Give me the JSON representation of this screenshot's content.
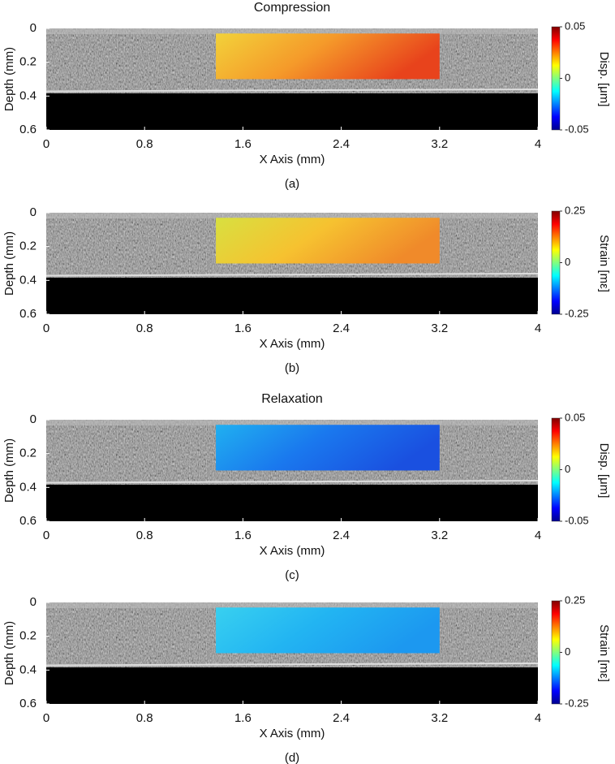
{
  "chart_data": [
    {
      "type": "image",
      "title": "Compression",
      "caption": "(a)",
      "xlabel": "X Axis (mm)",
      "ylabel": "Depth (mm)",
      "xlim": [
        0,
        4
      ],
      "xticks": [
        0,
        0.8,
        1.6,
        2.4,
        3.2,
        4
      ],
      "ylim": [
        0,
        0.6
      ],
      "yticks": [
        0,
        0.2,
        0.4,
        0.6
      ],
      "roi": {
        "x": [
          1.38,
          3.2
        ],
        "y": [
          0.03,
          0.3
        ],
        "colors": [
          "#f2d23a",
          "#f59a2a",
          "#e8431c"
        ]
      },
      "colorbar": {
        "label": "Disp. [μm]",
        "lim": [
          -0.05,
          0.05
        ],
        "ticks": [
          -0.05,
          0,
          0.05
        ]
      }
    },
    {
      "type": "image",
      "caption": "(b)",
      "xlabel": "X Axis (mm)",
      "ylabel": "Depth (mm)",
      "xlim": [
        0,
        4
      ],
      "xticks": [
        0,
        0.8,
        1.6,
        2.4,
        3.2,
        4
      ],
      "ylim": [
        0,
        0.6
      ],
      "yticks": [
        0,
        0.2,
        0.4,
        0.6
      ],
      "roi": {
        "x": [
          1.38,
          3.2
        ],
        "y": [
          0.03,
          0.3
        ],
        "colors": [
          "#d8e040",
          "#f6c230",
          "#f08a2a"
        ]
      },
      "colorbar": {
        "label": "Strain [mε]",
        "lim": [
          -0.25,
          0.25
        ],
        "ticks": [
          -0.25,
          0,
          0.25
        ]
      }
    },
    {
      "type": "image",
      "title": "Relaxation",
      "caption": "(c)",
      "xlabel": "X Axis (mm)",
      "ylabel": "Depth (mm)",
      "xlim": [
        0,
        4
      ],
      "xticks": [
        0,
        0.8,
        1.6,
        2.4,
        3.2,
        4
      ],
      "ylim": [
        0,
        0.6
      ],
      "yticks": [
        0,
        0.2,
        0.4,
        0.6
      ],
      "roi": {
        "x": [
          1.38,
          3.2
        ],
        "y": [
          0.03,
          0.3
        ],
        "colors": [
          "#20b0f0",
          "#1a78ee",
          "#1a50e0"
        ]
      },
      "colorbar": {
        "label": "Disp. [μm]",
        "lim": [
          -0.05,
          0.05
        ],
        "ticks": [
          -0.05,
          0,
          0.05
        ]
      }
    },
    {
      "type": "image",
      "caption": "(d)",
      "xlabel": "X Axis (mm)",
      "ylabel": "Depth (mm)",
      "xlim": [
        0,
        4
      ],
      "xticks": [
        0,
        0.8,
        1.6,
        2.4,
        3.2,
        4
      ],
      "ylim": [
        0,
        0.6
      ],
      "yticks": [
        0,
        0.2,
        0.4,
        0.6
      ],
      "roi": {
        "x": [
          1.38,
          3.2
        ],
        "y": [
          0.03,
          0.3
        ],
        "colors": [
          "#38d0f0",
          "#22b4f2",
          "#1c98f0"
        ]
      },
      "colorbar": {
        "label": "Strain [mε]",
        "lim": [
          -0.25,
          0.25
        ],
        "ticks": [
          -0.25,
          0,
          0.25
        ]
      }
    }
  ]
}
